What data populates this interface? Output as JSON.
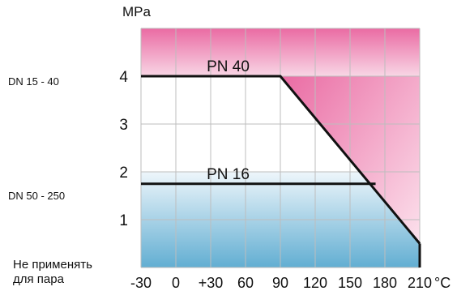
{
  "chart_data": {
    "type": "line",
    "unit_label": "MPa",
    "x_ticks": [
      "-30",
      "0",
      "+30",
      "60",
      "90",
      "120",
      "150",
      "180",
      "210"
    ],
    "x_unit": "°C",
    "y_ticks": [
      "1",
      "2",
      "3",
      "4"
    ],
    "xlim": [
      -30,
      210
    ],
    "ylim": [
      0,
      5
    ],
    "grid": true,
    "series": [
      {
        "name": "PN 40",
        "x": [
          -30,
          90,
          210
        ],
        "y": [
          4,
          4,
          0.5
        ]
      },
      {
        "name": "PN 16",
        "x": [
          -30,
          172
        ],
        "y": [
          1.75,
          1.75
        ]
      }
    ],
    "side_labels": {
      "pn40_range": "DN 15 - 40",
      "pn16_range": "DN 50 - 250"
    },
    "note_lines": [
      "Не применять",
      "для пара"
    ],
    "colors": {
      "top_zone": "#ea6ba3",
      "bottom_zone": "#62aed2",
      "curve": "#111111",
      "grid": "#bdbdbd"
    }
  }
}
